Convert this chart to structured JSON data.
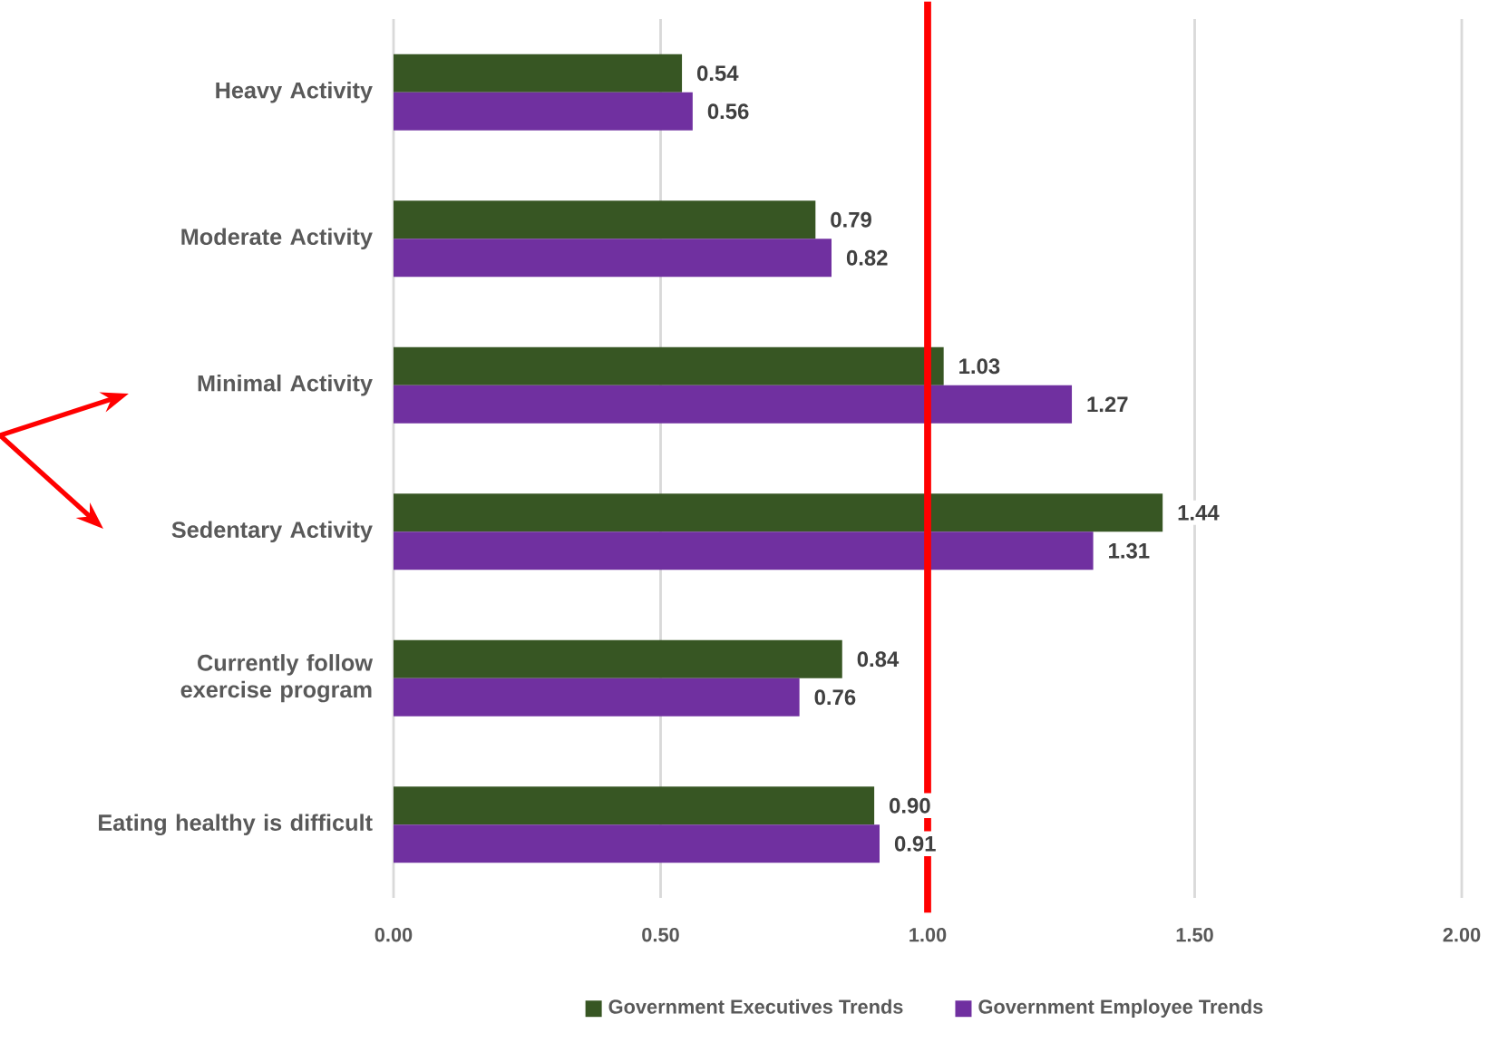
{
  "chart_data": {
    "type": "bar",
    "orientation": "horizontal",
    "categories": [
      "Heavy Activity",
      "Moderate Activity",
      "Minimal Activity",
      "Sedentary Activity",
      "Currently follow exercise program",
      "Eating healthy is difficult"
    ],
    "series": [
      {
        "name": "Government Executives Trends",
        "color": "#375623",
        "values": [
          0.54,
          0.79,
          1.03,
          1.44,
          0.84,
          0.9
        ],
        "value_labels": [
          "0.54",
          "0.79",
          "1.03",
          "1.44",
          "0.84",
          "0.90"
        ]
      },
      {
        "name": "Government Employee Trends",
        "color": "#7030a0",
        "values": [
          0.56,
          0.82,
          1.27,
          1.31,
          0.76,
          0.91
        ],
        "value_labels": [
          "0.56",
          "0.82",
          "1.27",
          "1.31",
          "0.76",
          "0.91"
        ]
      }
    ],
    "xlim": [
      0,
      2
    ],
    "xticks": [
      {
        "value": 0,
        "label": "0.00"
      },
      {
        "value": 0.5,
        "label": "0.50"
      },
      {
        "value": 1,
        "label": "1.00"
      },
      {
        "value": 1.5,
        "label": "1.50"
      },
      {
        "value": 2,
        "label": "2.00"
      }
    ],
    "grid": "x",
    "legend": "bottom",
    "ref_lines": [
      {
        "axis": "x",
        "value": 1,
        "color": "#ff0000"
      }
    ]
  }
}
